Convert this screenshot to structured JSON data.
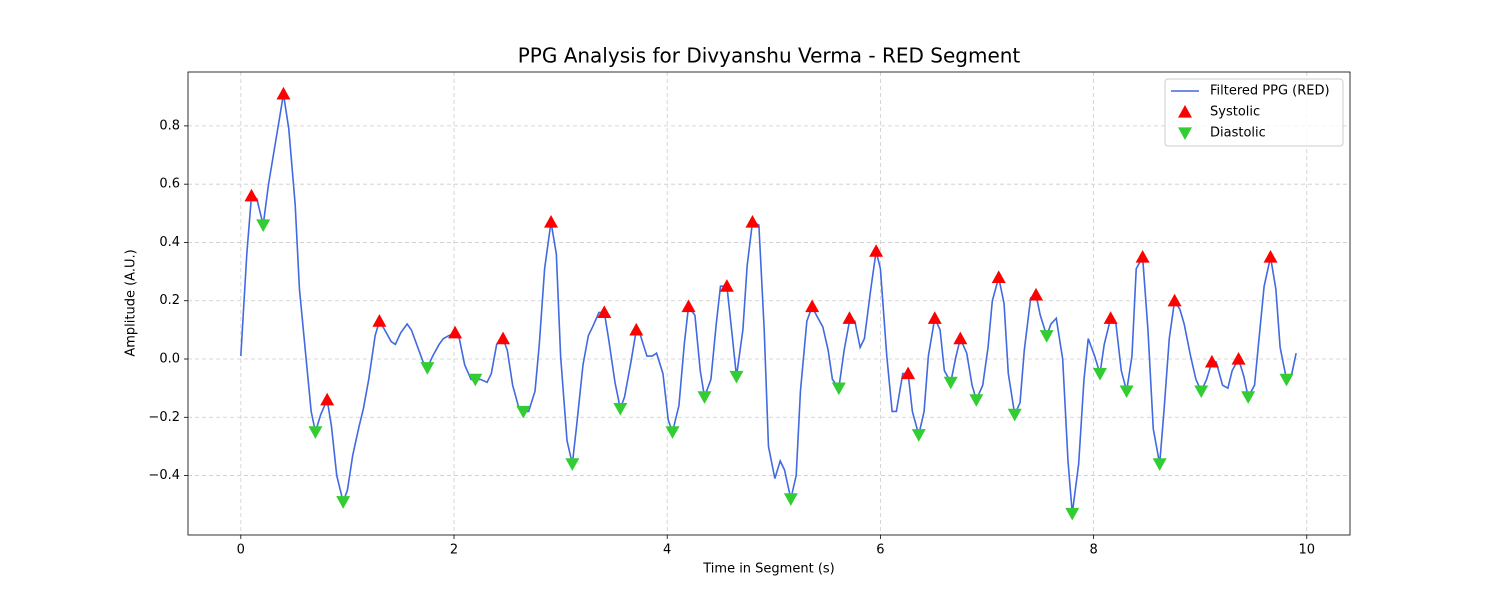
{
  "chart_data": {
    "type": "line",
    "title": "PPG Analysis for Divyanshu Verma - RED Segment",
    "x_label": "Time in Segment (s)",
    "y_label": "Amplitude (A.U.)",
    "xlim": [
      -0.4955,
      10.4055
    ],
    "ylim": [
      -0.604,
      0.985
    ],
    "xticks": [
      0,
      2,
      4,
      6,
      8,
      10
    ],
    "yticks": [
      {
        "value": -0.4,
        "label": "−0.4"
      },
      {
        "value": -0.2,
        "label": "−0.2"
      },
      {
        "value": 0,
        "label": "0.0"
      },
      0.2,
      0.4,
      0.6,
      0.8
    ],
    "grid": true,
    "legend": "upper right",
    "series": [
      {
        "name": "Filtered PPG (RED)",
        "type": "line",
        "color": "#4169e1",
        "x": [
          0,
          0.056,
          0.1,
          0.15,
          0.21,
          0.26,
          0.36,
          0.4,
          0.45,
          0.51,
          0.55,
          0.61,
          0.66,
          0.7,
          0.75,
          0.81,
          0.85,
          0.9,
          0.96,
          1.0,
          1.05,
          1.11,
          1.15,
          1.2,
          1.26,
          1.3,
          1.35,
          1.41,
          1.45,
          1.5,
          1.56,
          1.6,
          1.65,
          1.71,
          1.75,
          1.8,
          1.86,
          1.9,
          1.95,
          2.01,
          2.05,
          2.1,
          2.16,
          2.2,
          2.25,
          2.31,
          2.35,
          2.4,
          2.46,
          2.5,
          2.55,
          2.61,
          2.65,
          2.7,
          2.76,
          2.8,
          2.85,
          2.91,
          2.96,
          3.0,
          3.06,
          3.11,
          3.15,
          3.21,
          3.26,
          3.3,
          3.36,
          3.41,
          3.45,
          3.51,
          3.56,
          3.6,
          3.66,
          3.71,
          3.75,
          3.81,
          3.86,
          3.9,
          3.96,
          4.01,
          4.05,
          4.11,
          4.16,
          4.2,
          4.26,
          4.31,
          4.35,
          4.41,
          4.46,
          4.5,
          4.56,
          4.61,
          4.65,
          4.71,
          4.75,
          4.8,
          4.86,
          4.91,
          4.95,
          5.01,
          5.06,
          5.1,
          5.16,
          5.21,
          5.25,
          5.31,
          5.36,
          5.4,
          5.46,
          5.51,
          5.55,
          5.61,
          5.66,
          5.71,
          5.76,
          5.81,
          5.85,
          5.91,
          5.96,
          6.0,
          6.06,
          6.11,
          6.15,
          6.21,
          6.26,
          6.3,
          6.36,
          6.41,
          6.45,
          6.51,
          6.56,
          6.6,
          6.66,
          6.71,
          6.75,
          6.81,
          6.86,
          6.9,
          6.96,
          7.01,
          7.05,
          7.11,
          7.16,
          7.2,
          7.26,
          7.31,
          7.35,
          7.41,
          7.46,
          7.5,
          7.56,
          7.6,
          7.65,
          7.71,
          7.76,
          7.8,
          7.86,
          7.91,
          7.95,
          8.01,
          8.06,
          8.1,
          8.16,
          8.21,
          8.26,
          8.31,
          8.36,
          8.4,
          8.46,
          8.51,
          8.56,
          8.62,
          8.66,
          8.71,
          8.76,
          8.81,
          8.85,
          8.91,
          8.96,
          9.01,
          9.06,
          9.11,
          9.15,
          9.21,
          9.26,
          9.3,
          9.36,
          9.41,
          9.45,
          9.51,
          9.56,
          9.6,
          9.66,
          9.71,
          9.75,
          9.81,
          9.86,
          9.9
        ],
        "values": [
          0.01,
          0.36,
          0.56,
          0.55,
          0.46,
          0.6,
          0.82,
          0.91,
          0.79,
          0.53,
          0.24,
          0.01,
          -0.18,
          -0.25,
          -0.19,
          -0.14,
          -0.23,
          -0.4,
          -0.49,
          -0.45,
          -0.33,
          -0.23,
          -0.17,
          -0.07,
          0.08,
          0.13,
          0.1,
          0.06,
          0.05,
          0.09,
          0.12,
          0.1,
          0.05,
          -0.01,
          -0.03,
          0.01,
          0.05,
          0.07,
          0.08,
          0.09,
          0.07,
          -0.02,
          -0.07,
          -0.07,
          -0.07,
          -0.08,
          -0.05,
          0.05,
          0.07,
          0.03,
          -0.09,
          -0.17,
          -0.18,
          -0.18,
          -0.11,
          0.05,
          0.31,
          0.47,
          0.36,
          0.01,
          -0.28,
          -0.36,
          -0.23,
          -0.02,
          0.08,
          0.11,
          0.16,
          0.16,
          0.07,
          -0.08,
          -0.17,
          -0.13,
          -0.01,
          0.1,
          0.08,
          0.01,
          0.01,
          0.02,
          -0.05,
          -0.21,
          -0.25,
          -0.16,
          0.05,
          0.18,
          0.15,
          -0.04,
          -0.13,
          -0.07,
          0.12,
          0.25,
          0.25,
          0.08,
          -0.06,
          0.1,
          0.32,
          0.47,
          0.46,
          0.1,
          -0.3,
          -0.41,
          -0.35,
          -0.38,
          -0.48,
          -0.4,
          -0.11,
          0.13,
          0.18,
          0.15,
          0.11,
          0.03,
          -0.07,
          -0.1,
          0.03,
          0.13,
          0.13,
          0.04,
          0.07,
          0.24,
          0.37,
          0.31,
          0.01,
          -0.18,
          -0.18,
          -0.05,
          -0.05,
          -0.18,
          -0.26,
          -0.18,
          0.01,
          0.14,
          0.1,
          -0.04,
          -0.08,
          0.01,
          0.07,
          0.02,
          -0.09,
          -0.14,
          -0.09,
          0.04,
          0.2,
          0.28,
          0.19,
          -0.05,
          -0.19,
          -0.15,
          0.03,
          0.21,
          0.22,
          0.15,
          0.08,
          0.12,
          0.14,
          0.0,
          -0.35,
          -0.53,
          -0.36,
          -0.07,
          0.07,
          0.01,
          -0.05,
          0.05,
          0.14,
          0.12,
          -0.04,
          -0.11,
          0.01,
          0.31,
          0.35,
          0.1,
          -0.24,
          -0.36,
          -0.18,
          0.07,
          0.2,
          0.17,
          0.12,
          0.01,
          -0.07,
          -0.11,
          -0.07,
          -0.01,
          -0.01,
          -0.09,
          -0.1,
          -0.04,
          0.0,
          -0.06,
          -0.13,
          -0.09,
          0.1,
          0.25,
          0.35,
          0.24,
          0.04,
          -0.07,
          -0.05,
          0.02
        ]
      },
      {
        "name": "Systolic",
        "type": "scatter",
        "marker": "triangle-up",
        "color": "#ff0000",
        "x": [
          0.1,
          0.4,
          0.81,
          1.3,
          2.01,
          2.46,
          2.91,
          3.41,
          3.71,
          4.2,
          4.56,
          4.8,
          5.36,
          5.71,
          5.96,
          6.26,
          6.51,
          6.75,
          7.11,
          7.46,
          8.16,
          8.46,
          8.76,
          9.11,
          9.36,
          9.66
        ],
        "values": [
          0.56,
          0.91,
          -0.14,
          0.13,
          0.09,
          0.07,
          0.47,
          0.16,
          0.1,
          0.18,
          0.25,
          0.47,
          0.18,
          0.14,
          0.37,
          -0.05,
          0.14,
          0.07,
          0.28,
          0.22,
          0.14,
          0.35,
          0.2,
          -0.01,
          0.0,
          0.35
        ]
      },
      {
        "name": "Diastolic",
        "type": "scatter",
        "marker": "triangle-down",
        "color": "#32cd32",
        "x": [
          0.21,
          0.7,
          0.96,
          1.75,
          2.2,
          2.65,
          3.11,
          3.56,
          4.05,
          4.35,
          4.65,
          5.16,
          5.61,
          6.36,
          6.66,
          6.9,
          7.26,
          7.56,
          7.8,
          8.06,
          8.31,
          8.62,
          9.01,
          9.45,
          9.81
        ],
        "values": [
          0.46,
          -0.25,
          -0.49,
          -0.03,
          -0.07,
          -0.18,
          -0.36,
          -0.17,
          -0.25,
          -0.13,
          -0.06,
          -0.48,
          -0.1,
          -0.26,
          -0.08,
          -0.14,
          -0.19,
          0.08,
          -0.53,
          -0.05,
          -0.11,
          -0.36,
          -0.11,
          -0.13,
          -0.07
        ]
      }
    ]
  }
}
